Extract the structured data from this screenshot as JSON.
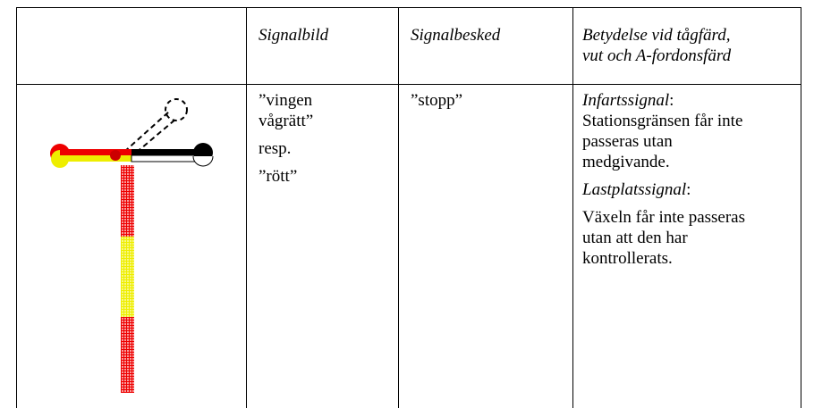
{
  "header": {
    "signalbild": "Signalbild",
    "signalbesked": "Signalbesked",
    "betydelse": [
      "Betydelse vid tågfärd,",
      "vut och A-fordonsfärd"
    ]
  },
  "row": {
    "signalbild": [
      "”vingen vågrätt”",
      "resp.",
      "”rött”"
    ],
    "signalbesked": "”stopp”",
    "betydelse": [
      {
        "term": "Infartssignal",
        "punct": ":",
        "text": "Stationsgränsen får inte passeras utan medgivande."
      },
      {
        "term": "Lastplatssignal",
        "punct": ":",
        "text": "Växeln får inte passeras utan att den har kontrollerats."
      }
    ]
  }
}
